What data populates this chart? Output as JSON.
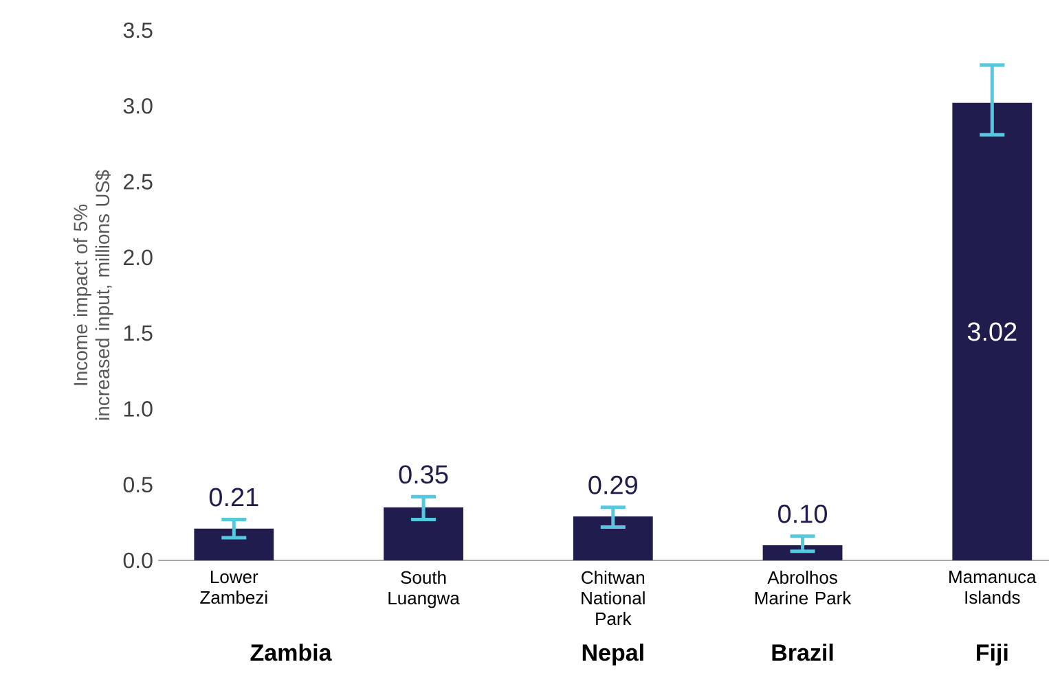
{
  "chart_data": {
    "type": "bar",
    "ylabel": "Income impact of 5% increased input, millions US$",
    "categories": [
      "Lower Zambezi",
      "South Luangwa",
      "Chitwan National Park",
      "Abrolhos Marine Park",
      "Mamanuca Islands"
    ],
    "values": [
      0.21,
      0.35,
      0.29,
      0.1,
      3.02
    ],
    "errors": [
      [
        0.15,
        0.27
      ],
      [
        0.27,
        0.42
      ],
      [
        0.22,
        0.35
      ],
      [
        0.06,
        0.16
      ],
      [
        2.81,
        3.27
      ]
    ],
    "value_labels": [
      "0.21",
      "0.35",
      "0.29",
      "0.10",
      "3.02"
    ],
    "color": "#211c4e",
    "ylim": [
      0,
      3.5
    ],
    "yticks": [
      {
        "value": 0,
        "label": "0.0"
      },
      {
        "value": 0.5,
        "label": "0.5"
      },
      {
        "value": 1,
        "label": "1.0"
      },
      {
        "value": 1.5,
        "label": "1.5"
      },
      {
        "value": 2,
        "label": "2.0"
      },
      {
        "value": 2.5,
        "label": "2.5"
      },
      {
        "value": 3,
        "label": "3.0"
      },
      {
        "value": 3.5,
        "label": "3.5"
      }
    ],
    "annotations": [
      "Zambia",
      "Nepal",
      "Brazil",
      "Fiji"
    ],
    "grid": false
  }
}
